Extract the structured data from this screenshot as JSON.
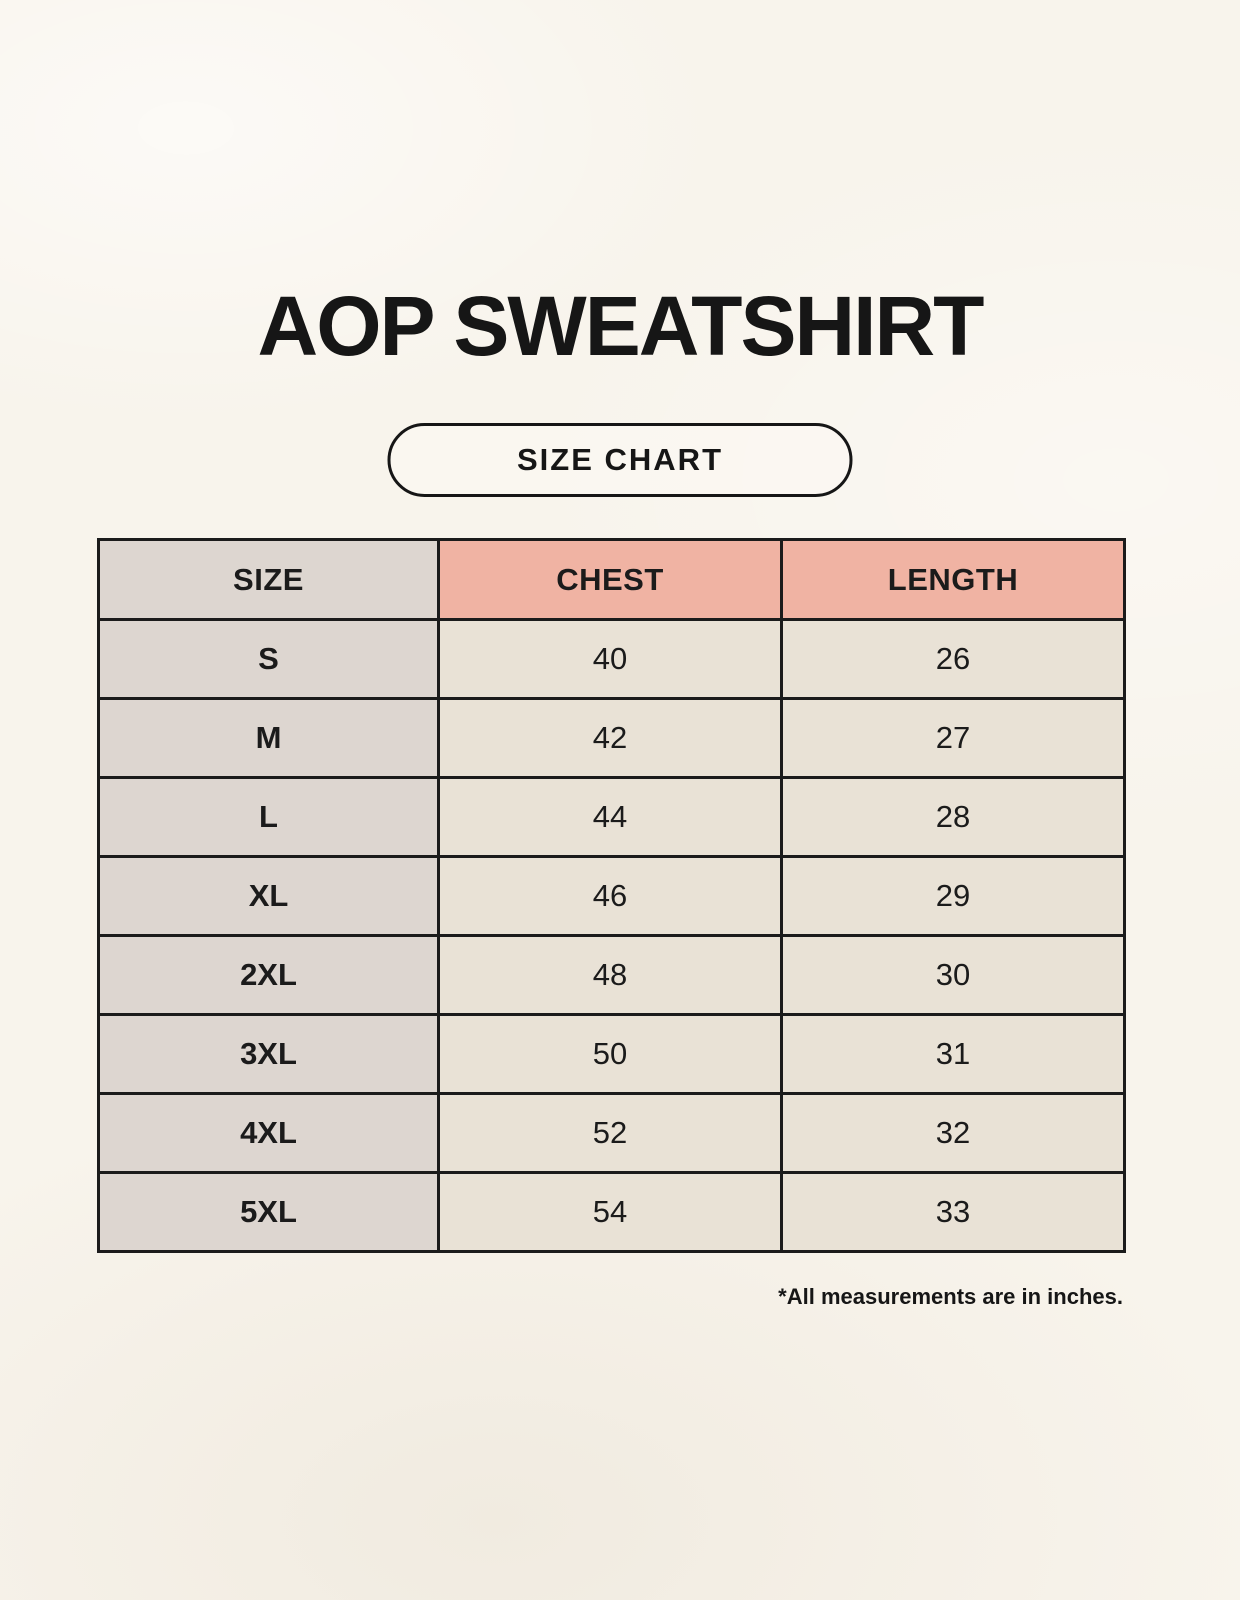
{
  "page": {
    "title": "AOP SWEATSHIRT",
    "badge_label": "SIZE CHART",
    "footnote": "*All measurements are in inches."
  },
  "chart_data": {
    "type": "table",
    "title": "AOP SWEATSHIRT",
    "subtitle": "SIZE CHART",
    "columns": [
      "SIZE",
      "CHEST",
      "LENGTH"
    ],
    "rows": [
      [
        "S",
        "40",
        "26"
      ],
      [
        "M",
        "42",
        "27"
      ],
      [
        "L",
        "44",
        "28"
      ],
      [
        "XL",
        "46",
        "29"
      ],
      [
        "2XL",
        "48",
        "30"
      ],
      [
        "3XL",
        "50",
        "31"
      ],
      [
        "4XL",
        "52",
        "32"
      ],
      [
        "5XL",
        "54",
        "33"
      ]
    ],
    "units": "inches",
    "note": "*All measurements are in inches."
  },
  "colors": {
    "background": "#f8f4ec",
    "size_column_gray": "#ddd6d0",
    "header_pink": "#f0b3a3",
    "cell_cream": "#e9e2d6",
    "border_black": "#1b1b1b",
    "text_black": "#161616"
  }
}
